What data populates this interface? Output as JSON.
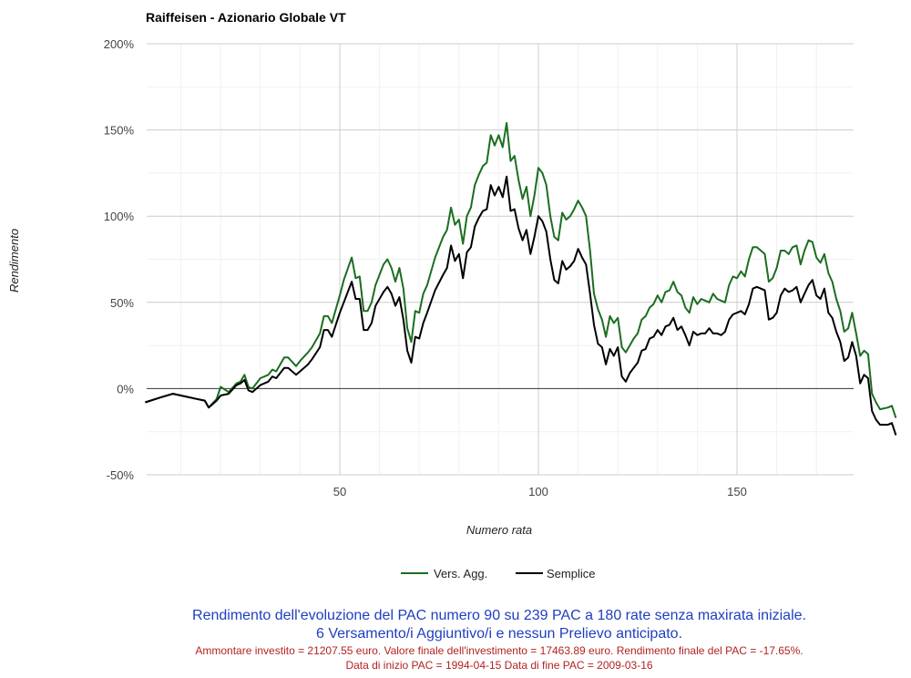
{
  "chart_data": {
    "type": "line",
    "title": "Raiffeisen - Azionario Globale VT",
    "xlabel": "Numero rata",
    "ylabel": "Rendimento",
    "xlim": [
      1,
      180
    ],
    "ylim": [
      -50,
      200
    ],
    "x_ticks": [
      50,
      100,
      150
    ],
    "y_ticks": [
      -50,
      0,
      50,
      100,
      150,
      200
    ],
    "y_tick_labels": [
      "-50%",
      "0%",
      "50%",
      "100%",
      "150%",
      "200%"
    ],
    "x_tick_labels": [
      "50",
      "100",
      "150"
    ],
    "grid": true,
    "legend_position": "bottom",
    "series": [
      {
        "name": "Vers. Agg.",
        "color": "#1b6e20",
        "points": [
          [
            1,
            -8
          ],
          [
            5,
            -5
          ],
          [
            8,
            -3
          ],
          [
            10,
            -4
          ],
          [
            14,
            -6
          ],
          [
            16,
            -7
          ],
          [
            17,
            -11
          ],
          [
            19,
            -6
          ],
          [
            20,
            1
          ],
          [
            22,
            -2
          ],
          [
            24,
            3
          ],
          [
            25,
            4
          ],
          [
            26,
            8
          ],
          [
            27,
            1
          ],
          [
            28,
            0
          ],
          [
            30,
            6
          ],
          [
            32,
            8
          ],
          [
            33,
            11
          ],
          [
            34,
            10
          ],
          [
            36,
            18
          ],
          [
            37,
            18
          ],
          [
            39,
            13
          ],
          [
            40,
            16
          ],
          [
            42,
            21
          ],
          [
            43,
            24
          ],
          [
            45,
            32
          ],
          [
            46,
            42
          ],
          [
            47,
            42
          ],
          [
            48,
            38
          ],
          [
            50,
            54
          ],
          [
            51,
            63
          ],
          [
            53,
            76
          ],
          [
            54,
            64
          ],
          [
            55,
            65
          ],
          [
            56,
            45
          ],
          [
            57,
            45
          ],
          [
            58,
            50
          ],
          [
            59,
            60
          ],
          [
            61,
            72
          ],
          [
            62,
            75
          ],
          [
            63,
            70
          ],
          [
            64,
            62
          ],
          [
            65,
            70
          ],
          [
            66,
            58
          ],
          [
            67,
            35
          ],
          [
            68,
            27
          ],
          [
            69,
            45
          ],
          [
            70,
            44
          ],
          [
            71,
            55
          ],
          [
            72,
            60
          ],
          [
            74,
            76
          ],
          [
            76,
            88
          ],
          [
            77,
            92
          ],
          [
            78,
            105
          ],
          [
            79,
            95
          ],
          [
            80,
            98
          ],
          [
            81,
            84
          ],
          [
            82,
            100
          ],
          [
            83,
            105
          ],
          [
            84,
            118
          ],
          [
            85,
            124
          ],
          [
            86,
            129
          ],
          [
            87,
            131
          ],
          [
            88,
            147
          ],
          [
            89,
            141
          ],
          [
            90,
            147
          ],
          [
            91,
            140
          ],
          [
            92,
            154
          ],
          [
            93,
            132
          ],
          [
            94,
            135
          ],
          [
            95,
            121
          ],
          [
            96,
            110
          ],
          [
            97,
            117
          ],
          [
            98,
            100
          ],
          [
            99,
            112
          ],
          [
            100,
            128
          ],
          [
            101,
            125
          ],
          [
            102,
            118
          ],
          [
            103,
            100
          ],
          [
            104,
            88
          ],
          [
            105,
            86
          ],
          [
            106,
            102
          ],
          [
            107,
            98
          ],
          [
            108,
            100
          ],
          [
            109,
            104
          ],
          [
            110,
            109
          ],
          [
            111,
            105
          ],
          [
            112,
            100
          ],
          [
            113,
            80
          ],
          [
            114,
            55
          ],
          [
            115,
            46
          ],
          [
            116,
            40
          ],
          [
            117,
            30
          ],
          [
            118,
            42
          ],
          [
            119,
            38
          ],
          [
            120,
            41
          ],
          [
            121,
            24
          ],
          [
            122,
            21
          ],
          [
            123,
            25
          ],
          [
            124,
            29
          ],
          [
            125,
            32
          ],
          [
            126,
            40
          ],
          [
            127,
            42
          ],
          [
            128,
            47
          ],
          [
            129,
            49
          ],
          [
            130,
            54
          ],
          [
            131,
            50
          ],
          [
            132,
            56
          ],
          [
            133,
            57
          ],
          [
            134,
            62
          ],
          [
            135,
            56
          ],
          [
            136,
            54
          ],
          [
            137,
            47
          ],
          [
            138,
            44
          ],
          [
            139,
            53
          ],
          [
            140,
            49
          ],
          [
            141,
            52
          ],
          [
            142,
            51
          ],
          [
            143,
            50
          ],
          [
            144,
            55
          ],
          [
            145,
            52
          ],
          [
            146,
            51
          ],
          [
            147,
            50
          ],
          [
            148,
            60
          ],
          [
            149,
            65
          ],
          [
            150,
            64
          ],
          [
            151,
            68
          ],
          [
            152,
            65
          ],
          [
            153,
            75
          ],
          [
            154,
            82
          ],
          [
            155,
            82
          ],
          [
            156,
            80
          ],
          [
            157,
            78
          ],
          [
            158,
            62
          ],
          [
            159,
            64
          ],
          [
            160,
            70
          ],
          [
            161,
            80
          ],
          [
            162,
            80
          ],
          [
            163,
            78
          ],
          [
            164,
            82
          ],
          [
            165,
            83
          ],
          [
            166,
            72
          ],
          [
            167,
            80
          ],
          [
            168,
            86
          ],
          [
            169,
            85
          ],
          [
            170,
            76
          ],
          [
            171,
            73
          ],
          [
            172,
            78
          ],
          [
            173,
            67
          ],
          [
            174,
            62
          ],
          [
            175,
            52
          ],
          [
            176,
            45
          ],
          [
            177,
            33
          ],
          [
            178,
            35
          ],
          [
            179,
            44
          ],
          [
            180,
            32
          ],
          [
            181,
            19
          ],
          [
            182,
            22
          ],
          [
            183,
            20
          ],
          [
            184,
            -3
          ],
          [
            185,
            -8
          ],
          [
            186,
            -12
          ],
          [
            188,
            -11
          ],
          [
            189,
            -10
          ],
          [
            190,
            -17
          ]
        ]
      },
      {
        "name": "Semplice",
        "color": "#000000",
        "points": [
          [
            1,
            -8
          ],
          [
            5,
            -5
          ],
          [
            8,
            -3
          ],
          [
            10,
            -4
          ],
          [
            14,
            -6
          ],
          [
            16,
            -7
          ],
          [
            17,
            -11
          ],
          [
            19,
            -7
          ],
          [
            20,
            -4
          ],
          [
            22,
            -3
          ],
          [
            24,
            2
          ],
          [
            25,
            3
          ],
          [
            26,
            5
          ],
          [
            27,
            -1
          ],
          [
            28,
            -2
          ],
          [
            30,
            2
          ],
          [
            32,
            4
          ],
          [
            33,
            7
          ],
          [
            34,
            6
          ],
          [
            36,
            12
          ],
          [
            37,
            12
          ],
          [
            39,
            8
          ],
          [
            40,
            10
          ],
          [
            42,
            14
          ],
          [
            43,
            17
          ],
          [
            45,
            24
          ],
          [
            46,
            34
          ],
          [
            47,
            34
          ],
          [
            48,
            30
          ],
          [
            50,
            44
          ],
          [
            51,
            50
          ],
          [
            53,
            62
          ],
          [
            54,
            52
          ],
          [
            55,
            52
          ],
          [
            56,
            34
          ],
          [
            57,
            34
          ],
          [
            58,
            38
          ],
          [
            59,
            48
          ],
          [
            61,
            56
          ],
          [
            62,
            59
          ],
          [
            63,
            55
          ],
          [
            64,
            48
          ],
          [
            65,
            53
          ],
          [
            66,
            40
          ],
          [
            67,
            22
          ],
          [
            68,
            15
          ],
          [
            69,
            30
          ],
          [
            70,
            29
          ],
          [
            71,
            38
          ],
          [
            72,
            44
          ],
          [
            74,
            57
          ],
          [
            76,
            66
          ],
          [
            77,
            70
          ],
          [
            78,
            83
          ],
          [
            79,
            74
          ],
          [
            80,
            78
          ],
          [
            81,
            64
          ],
          [
            82,
            79
          ],
          [
            83,
            82
          ],
          [
            84,
            94
          ],
          [
            85,
            99
          ],
          [
            86,
            103
          ],
          [
            87,
            104
          ],
          [
            88,
            118
          ],
          [
            89,
            112
          ],
          [
            90,
            117
          ],
          [
            91,
            111
          ],
          [
            92,
            123
          ],
          [
            93,
            103
          ],
          [
            94,
            104
          ],
          [
            95,
            93
          ],
          [
            96,
            86
          ],
          [
            97,
            92
          ],
          [
            98,
            78
          ],
          [
            99,
            88
          ],
          [
            100,
            100
          ],
          [
            101,
            97
          ],
          [
            102,
            91
          ],
          [
            103,
            75
          ],
          [
            104,
            63
          ],
          [
            105,
            61
          ],
          [
            106,
            74
          ],
          [
            107,
            69
          ],
          [
            108,
            71
          ],
          [
            109,
            74
          ],
          [
            110,
            81
          ],
          [
            111,
            76
          ],
          [
            112,
            72
          ],
          [
            113,
            55
          ],
          [
            114,
            37
          ],
          [
            115,
            26
          ],
          [
            116,
            24
          ],
          [
            117,
            14
          ],
          [
            118,
            23
          ],
          [
            119,
            19
          ],
          [
            120,
            24
          ],
          [
            121,
            7
          ],
          [
            122,
            4
          ],
          [
            123,
            9
          ],
          [
            124,
            12
          ],
          [
            125,
            15
          ],
          [
            126,
            22
          ],
          [
            127,
            23
          ],
          [
            128,
            29
          ],
          [
            129,
            30
          ],
          [
            130,
            34
          ],
          [
            131,
            31
          ],
          [
            132,
            36
          ],
          [
            133,
            37
          ],
          [
            134,
            41
          ],
          [
            135,
            34
          ],
          [
            136,
            36
          ],
          [
            137,
            31
          ],
          [
            138,
            25
          ],
          [
            139,
            33
          ],
          [
            140,
            31
          ],
          [
            141,
            32
          ],
          [
            142,
            32
          ],
          [
            143,
            35
          ],
          [
            144,
            32
          ],
          [
            145,
            32
          ],
          [
            146,
            31
          ],
          [
            147,
            33
          ],
          [
            148,
            40
          ],
          [
            149,
            43
          ],
          [
            150,
            44
          ],
          [
            151,
            45
          ],
          [
            152,
            43
          ],
          [
            153,
            49
          ],
          [
            154,
            58
          ],
          [
            155,
            59
          ],
          [
            156,
            58
          ],
          [
            157,
            57
          ],
          [
            158,
            40
          ],
          [
            159,
            41
          ],
          [
            160,
            44
          ],
          [
            161,
            54
          ],
          [
            162,
            58
          ],
          [
            163,
            56
          ],
          [
            164,
            57
          ],
          [
            165,
            59
          ],
          [
            166,
            50
          ],
          [
            167,
            55
          ],
          [
            168,
            60
          ],
          [
            169,
            63
          ],
          [
            170,
            54
          ],
          [
            171,
            52
          ],
          [
            172,
            58
          ],
          [
            173,
            44
          ],
          [
            174,
            41
          ],
          [
            175,
            33
          ],
          [
            176,
            27
          ],
          [
            177,
            16
          ],
          [
            178,
            18
          ],
          [
            179,
            27
          ],
          [
            180,
            19
          ],
          [
            181,
            3
          ],
          [
            182,
            8
          ],
          [
            183,
            6
          ],
          [
            184,
            -13
          ],
          [
            185,
            -18
          ],
          [
            186,
            -21
          ],
          [
            188,
            -21
          ],
          [
            189,
            -20
          ],
          [
            190,
            -27
          ]
        ]
      }
    ]
  },
  "footer": {
    "line1": "Rendimento dell'evoluzione del PAC numero 90 su 239 PAC a 180 rate senza maxirata iniziale.",
    "line2": "6 Versamento/i Aggiuntivo/i e nessun Prelievo anticipato.",
    "line3": "Ammontare investito = 21207.55 euro. Valore finale dell'investimento = 17463.89 euro. Rendimento finale del PAC = -17.65%.",
    "line4": "Data di inizio PAC = 1994-04-15 Data di fine PAC = 2009-03-16"
  }
}
